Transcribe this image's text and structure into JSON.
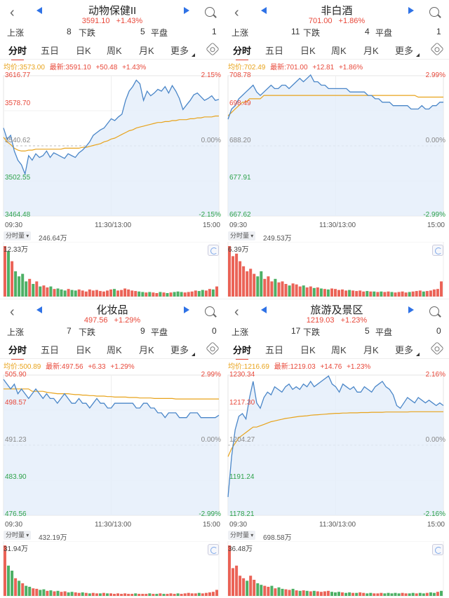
{
  "panels": [
    {
      "title": "动物保健II",
      "price": "3591.10",
      "pct": "+1.43%",
      "breadth": {
        "up_label": "上涨",
        "up": "8",
        "down_label": "下跌",
        "down": "5",
        "flat_label": "平盘",
        "flat": "1"
      },
      "tabs": [
        "分时",
        "五日",
        "日K",
        "周K",
        "月K",
        "更多"
      ],
      "info": {
        "avg": "均价:3573.00",
        "latest": "最新:3591.10",
        "change": "+50.48",
        "pct": "+1.43%"
      },
      "levels": [
        {
          "left": "3616.77",
          "right": "2.15%"
        },
        {
          "left": "3578.70",
          "right": ""
        },
        {
          "left": "3540.62",
          "right": "0.00%"
        },
        {
          "left": "3502.55",
          "right": ""
        },
        {
          "left": "3464.48",
          "right": "-2.15%"
        }
      ],
      "time": [
        "09:30",
        "11:30/13:00",
        "15:00"
      ],
      "vol_label": "分时量",
      "vol_total": "246.64万",
      "vol_max": "12.33万",
      "chart_data": {
        "type": "line",
        "y_range": [
          3464.48,
          3616.77
        ],
        "prev_close": 3540.62,
        "price": [
          3560,
          3548,
          3552,
          3535,
          3525,
          3520,
          3510,
          3530,
          3525,
          3532,
          3528,
          3530,
          3535,
          3528,
          3533,
          3531,
          3529,
          3527,
          3532,
          3530,
          3528,
          3533,
          3536,
          3540,
          3545,
          3552,
          3555,
          3558,
          3560,
          3565,
          3570,
          3568,
          3572,
          3575,
          3590,
          3600,
          3605,
          3612,
          3608,
          3590,
          3600,
          3595,
          3598,
          3602,
          3600,
          3605,
          3598,
          3606,
          3600,
          3592,
          3580,
          3585,
          3590,
          3596,
          3598,
          3594,
          3590,
          3592,
          3595,
          3590,
          3591
        ],
        "avg": [
          3550,
          3545,
          3542,
          3538,
          3536,
          3535,
          3535,
          3536,
          3536,
          3537,
          3537,
          3537,
          3537,
          3537,
          3537,
          3537,
          3537,
          3538,
          3538,
          3538,
          3538,
          3538,
          3539,
          3539,
          3540,
          3541,
          3542,
          3543,
          3545,
          3546,
          3548,
          3549,
          3551,
          3553,
          3555,
          3557,
          3558,
          3560,
          3561,
          3562,
          3563,
          3564,
          3565,
          3566,
          3566,
          3567,
          3567,
          3568,
          3568,
          3569,
          3569,
          3569,
          3570,
          3570,
          3571,
          3571,
          3572,
          3572,
          3572,
          3573,
          3573
        ],
        "volume_ratio": [
          1.0,
          0.9,
          0.7,
          0.5,
          0.4,
          0.45,
          0.3,
          0.35,
          0.25,
          0.3,
          0.2,
          0.22,
          0.18,
          0.2,
          0.15,
          0.16,
          0.14,
          0.12,
          0.15,
          0.13,
          0.12,
          0.14,
          0.12,
          0.1,
          0.14,
          0.12,
          0.13,
          0.11,
          0.1,
          0.12,
          0.14,
          0.15,
          0.12,
          0.13,
          0.16,
          0.14,
          0.12,
          0.11,
          0.1,
          0.09,
          0.08,
          0.09,
          0.08,
          0.07,
          0.09,
          0.08,
          0.07,
          0.08,
          0.09,
          0.1,
          0.09,
          0.08,
          0.09,
          0.1,
          0.12,
          0.11,
          0.13,
          0.12,
          0.15,
          0.14,
          0.2
        ]
      }
    },
    {
      "title": "非白酒",
      "price": "701.00",
      "pct": "+1.86%",
      "breadth": {
        "up_label": "上涨",
        "up": "11",
        "down_label": "下跌",
        "down": "4",
        "flat_label": "平盘",
        "flat": "1"
      },
      "tabs": [
        "分时",
        "五日",
        "日K",
        "周K",
        "月K",
        "更多"
      ],
      "info": {
        "avg": "均价:702.49",
        "latest": "最新:701.00",
        "change": "+12.81",
        "pct": "+1.86%"
      },
      "levels": [
        {
          "left": "708.78",
          "right": "2.99%"
        },
        {
          "left": "698.49",
          "right": ""
        },
        {
          "left": "688.20",
          "right": "0.00%"
        },
        {
          "left": "677.91",
          "right": ""
        },
        {
          "left": "667.62",
          "right": "-2.99%"
        }
      ],
      "time": [
        "09:30",
        "11:30/13:00",
        "15:00"
      ],
      "vol_label": "分时量",
      "vol_total": "249.53万",
      "vol_max": "6.39万",
      "chart_data": {
        "type": "line",
        "y_range": [
          667.62,
          708.78
        ],
        "prev_close": 688.2,
        "price": [
          696,
          699,
          700,
          702,
          703,
          704,
          705,
          706,
          704,
          703,
          704,
          705,
          706,
          705,
          705,
          706,
          706,
          705,
          706,
          707,
          708,
          707,
          708,
          709,
          707,
          707,
          706,
          706,
          705,
          705,
          705,
          705,
          705,
          705,
          704,
          704,
          704,
          704,
          704,
          703,
          703,
          702,
          702,
          701,
          701,
          701,
          700,
          700,
          700,
          700,
          700,
          699,
          699,
          699,
          700,
          699,
          699,
          700,
          700,
          701,
          701
        ],
        "avg": [
          697,
          698,
          699,
          700,
          701,
          701,
          702,
          702,
          702,
          702,
          703,
          703,
          703,
          703,
          703,
          703,
          703,
          703,
          703,
          703,
          703,
          703,
          703,
          703,
          703,
          703,
          703,
          703,
          703,
          703,
          703,
          703,
          703,
          703,
          703,
          703,
          703,
          703,
          703,
          703,
          703,
          703,
          703,
          703,
          703,
          703,
          703,
          703,
          703,
          703,
          703,
          703,
          703,
          702.5,
          702.5,
          702.5,
          702.5,
          702.5,
          702.5,
          702.5,
          702.5
        ],
        "volume_ratio": [
          1.0,
          0.8,
          0.85,
          0.7,
          0.6,
          0.5,
          0.55,
          0.45,
          0.4,
          0.5,
          0.35,
          0.4,
          0.3,
          0.35,
          0.28,
          0.3,
          0.25,
          0.22,
          0.26,
          0.24,
          0.2,
          0.22,
          0.18,
          0.2,
          0.17,
          0.18,
          0.16,
          0.15,
          0.14,
          0.16,
          0.15,
          0.13,
          0.14,
          0.12,
          0.13,
          0.12,
          0.11,
          0.12,
          0.1,
          0.11,
          0.1,
          0.1,
          0.09,
          0.1,
          0.09,
          0.1,
          0.09,
          0.08,
          0.09,
          0.1,
          0.08,
          0.09,
          0.1,
          0.11,
          0.12,
          0.1,
          0.11,
          0.12,
          0.14,
          0.15,
          0.3
        ]
      }
    },
    {
      "title": "化妆品",
      "price": "497.56",
      "pct": "+1.29%",
      "breadth": {
        "up_label": "上涨",
        "up": "7",
        "down_label": "下跌",
        "down": "9",
        "flat_label": "平盘",
        "flat": "0"
      },
      "tabs": [
        "分时",
        "五日",
        "日K",
        "周K",
        "月K",
        "更多"
      ],
      "info": {
        "avg": "均价:500.89",
        "latest": "最新:497.56",
        "change": "+6.33",
        "pct": "+1.29%"
      },
      "levels": [
        {
          "left": "505.90",
          "right": "2.99%"
        },
        {
          "left": "498.57",
          "right": ""
        },
        {
          "left": "491.23",
          "right": "0.00%"
        },
        {
          "left": "483.90",
          "right": ""
        },
        {
          "left": "476.56",
          "right": "-2.99%"
        }
      ],
      "time": [
        "09:30",
        "11:30/13:00",
        "15:00"
      ],
      "vol_label": "分时量",
      "vol_total": "432.19万",
      "vol_max": "31.94万",
      "chart_data": {
        "type": "line",
        "y_range": [
          476.56,
          505.9
        ],
        "prev_close": 491.23,
        "price": [
          505,
          504,
          503,
          504,
          502,
          503,
          502,
          501,
          502,
          503,
          502,
          501,
          502,
          501,
          501,
          500,
          501,
          502,
          501,
          500,
          500,
          501,
          500,
          500,
          499,
          500,
          501,
          500,
          500,
          499,
          499,
          500,
          500,
          500,
          500,
          500,
          500,
          499,
          499,
          500,
          500,
          499,
          499,
          498,
          498,
          497,
          498,
          498,
          498,
          497,
          497,
          497,
          498,
          498,
          498,
          497,
          497,
          497,
          497,
          497,
          497.5
        ],
        "avg": [
          503,
          503,
          503,
          503,
          503,
          503,
          503,
          503,
          502.5,
          502.5,
          502.5,
          502.5,
          502.3,
          502.2,
          502.1,
          502,
          502,
          502,
          502,
          501.9,
          501.8,
          501.8,
          501.7,
          501.7,
          501.6,
          501.6,
          501.5,
          501.5,
          501.5,
          501.4,
          501.4,
          501.3,
          501.3,
          501.3,
          501.3,
          501.2,
          501.2,
          501.2,
          501.1,
          501.1,
          501.1,
          501.1,
          501,
          501,
          501,
          501,
          501,
          501,
          500.9,
          500.9,
          500.9,
          500.9,
          500.9,
          500.9,
          500.9,
          500.9,
          500.9,
          500.9,
          500.9,
          500.9,
          500.9
        ],
        "volume_ratio": [
          1.0,
          0.6,
          0.5,
          0.35,
          0.3,
          0.25,
          0.2,
          0.18,
          0.15,
          0.14,
          0.12,
          0.13,
          0.1,
          0.11,
          0.09,
          0.1,
          0.08,
          0.09,
          0.07,
          0.08,
          0.07,
          0.06,
          0.07,
          0.06,
          0.05,
          0.06,
          0.05,
          0.05,
          0.06,
          0.05,
          0.05,
          0.04,
          0.05,
          0.04,
          0.05,
          0.04,
          0.04,
          0.05,
          0.04,
          0.04,
          0.04,
          0.05,
          0.04,
          0.04,
          0.05,
          0.04,
          0.04,
          0.05,
          0.04,
          0.05,
          0.04,
          0.05,
          0.06,
          0.05,
          0.05,
          0.06,
          0.05,
          0.06,
          0.07,
          0.08,
          0.12
        ]
      }
    },
    {
      "title": "旅游及景区",
      "price": "1219.03",
      "pct": "+1.23%",
      "breadth": {
        "up_label": "上涨",
        "up": "17",
        "down_label": "下跌",
        "down": "5",
        "flat_label": "平盘",
        "flat": "0"
      },
      "tabs": [
        "分时",
        "五日",
        "日K",
        "周K",
        "月K",
        "更多"
      ],
      "info": {
        "avg": "均价:1216.69",
        "latest": "最新:1219.03",
        "change": "+14.76",
        "pct": "+1.23%"
      },
      "levels": [
        {
          "left": "1230.34",
          "right": "2.16%"
        },
        {
          "left": "1217.30",
          "right": ""
        },
        {
          "left": "1204.27",
          "right": "0.00%"
        },
        {
          "left": "1191.24",
          "right": ""
        },
        {
          "left": "1178.21",
          "right": "-2.16%"
        }
      ],
      "time": [
        "09:30",
        "11:30/13:00",
        "15:00"
      ],
      "vol_label": "分时量",
      "vol_total": "698.58万",
      "vol_max": "36.48万",
      "chart_data": {
        "type": "line",
        "y_range": [
          1178.21,
          1230.34
        ],
        "prev_close": 1204.27,
        "price": [
          1185,
          1200,
          1210,
          1215,
          1216,
          1214,
          1222,
          1228,
          1220,
          1218,
          1222,
          1224,
          1223,
          1226,
          1225,
          1224,
          1226,
          1227,
          1225,
          1226,
          1225,
          1227,
          1226,
          1228,
          1226,
          1227,
          1228,
          1229,
          1230,
          1227,
          1226,
          1224,
          1227,
          1226,
          1225,
          1226,
          1224,
          1224,
          1226,
          1225,
          1224,
          1226,
          1227,
          1228,
          1226,
          1225,
          1223,
          1219,
          1218,
          1220,
          1222,
          1221,
          1220,
          1222,
          1221,
          1220,
          1221,
          1220,
          1219,
          1220,
          1219
        ],
        "avg": [
          1200,
          1203,
          1205,
          1207,
          1208,
          1209,
          1210,
          1211,
          1211,
          1211.5,
          1212,
          1212.5,
          1213,
          1213.3,
          1213.6,
          1213.9,
          1214.2,
          1214.4,
          1214.6,
          1214.8,
          1215,
          1215.1,
          1215.2,
          1215.4,
          1215.5,
          1215.6,
          1215.7,
          1215.8,
          1215.9,
          1216,
          1216.1,
          1216.1,
          1216.2,
          1216.2,
          1216.3,
          1216.3,
          1216.3,
          1216.4,
          1216.4,
          1216.4,
          1216.5,
          1216.5,
          1216.5,
          1216.5,
          1216.6,
          1216.6,
          1216.6,
          1216.6,
          1216.6,
          1216.6,
          1216.6,
          1216.7,
          1216.7,
          1216.7,
          1216.7,
          1216.7,
          1216.7,
          1216.7,
          1216.7,
          1216.7,
          1216.7
        ],
        "volume_ratio": [
          1.0,
          0.55,
          0.6,
          0.4,
          0.35,
          0.3,
          0.4,
          0.32,
          0.25,
          0.22,
          0.2,
          0.18,
          0.2,
          0.15,
          0.17,
          0.14,
          0.13,
          0.12,
          0.14,
          0.11,
          0.1,
          0.11,
          0.1,
          0.09,
          0.1,
          0.09,
          0.08,
          0.09,
          0.1,
          0.08,
          0.07,
          0.08,
          0.07,
          0.06,
          0.07,
          0.06,
          0.06,
          0.07,
          0.06,
          0.05,
          0.06,
          0.05,
          0.05,
          0.06,
          0.05,
          0.06,
          0.05,
          0.06,
          0.05,
          0.06,
          0.05,
          0.05,
          0.06,
          0.05,
          0.06,
          0.05,
          0.06,
          0.07,
          0.06,
          0.08,
          0.1
        ]
      }
    }
  ],
  "colors": {
    "up": "#e8483a",
    "down": "#2ea24a",
    "price_line": "#4a86c8",
    "avg_line": "#e8a31b",
    "accent": "#2f72e6"
  }
}
